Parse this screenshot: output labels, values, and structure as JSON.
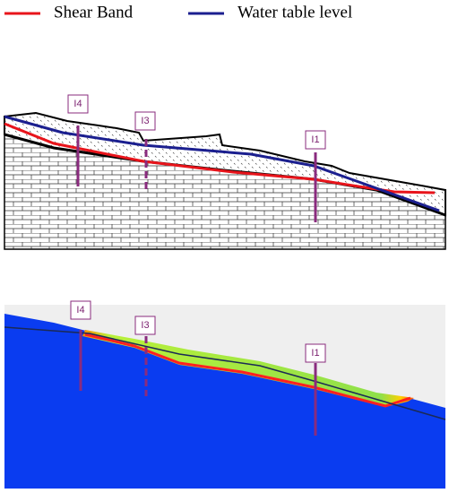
{
  "legend": [
    {
      "label": "Shear Band"
    },
    {
      "label": "Water table level"
    }
  ],
  "top_panel": {
    "inclinometers": [
      "I4",
      "I3",
      "I1"
    ]
  },
  "bottom_panel": {
    "inclinometers": [
      "I4",
      "I3",
      "I1"
    ]
  }
}
